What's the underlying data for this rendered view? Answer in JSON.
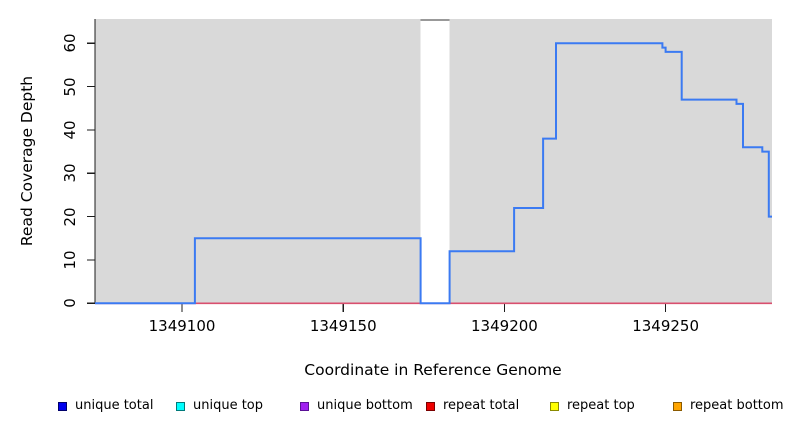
{
  "chart_data": {
    "type": "line",
    "subtype": "step-coverage",
    "title": "",
    "xlabel": "Coordinate in Reference Genome",
    "ylabel": "Read Coverage Depth",
    "xlim": [
      1349073,
      1349283
    ],
    "ylim": [
      0,
      65.6
    ],
    "x_ticks": [
      "1349100",
      "1349150",
      "1349200",
      "1349250"
    ],
    "x_tick_values": [
      1349100,
      1349150,
      1349200,
      1349250
    ],
    "y_ticks": [
      "0",
      "10",
      "20",
      "30",
      "40",
      "50",
      "60"
    ],
    "y_tick_values": [
      0,
      10,
      20,
      30,
      40,
      50,
      60
    ],
    "grid": false,
    "plot_bg": "#d9d9d9",
    "gap_region": {
      "from": 1349174,
      "to": 1349183,
      "fill": "#ffffff",
      "cap_color": "#999999"
    },
    "series": [
      {
        "name": "unique total",
        "type": "step",
        "color": "#3b7af2",
        "width": 2,
        "points": [
          [
            1349073,
            0
          ],
          [
            1349104,
            15
          ],
          [
            1349174,
            0
          ],
          [
            1349183,
            12
          ],
          [
            1349203,
            22
          ],
          [
            1349212,
            38
          ],
          [
            1349216,
            60
          ],
          [
            1349249,
            59
          ],
          [
            1349250,
            58
          ],
          [
            1349255,
            47
          ],
          [
            1349272,
            46
          ],
          [
            1349274,
            36
          ],
          [
            1349280,
            35
          ],
          [
            1349282,
            20
          ],
          [
            1349283,
            20
          ]
        ]
      },
      {
        "name": "repeat total",
        "type": "line",
        "color": "#d94f6e",
        "width": 1.7,
        "points": [
          [
            1349073,
            0
          ],
          [
            1349283,
            0
          ]
        ]
      }
    ],
    "legend_position": "bottom",
    "legend": [
      {
        "label": "unique total",
        "fill": "#0000ee",
        "border": "#00006b"
      },
      {
        "label": "unique top",
        "fill": "#00ffff",
        "border": "#007a7a"
      },
      {
        "label": "unique bottom",
        "fill": "#a020f0",
        "border": "#5a1196"
      },
      {
        "label": "repeat total",
        "fill": "#ee0000",
        "border": "#7a0000"
      },
      {
        "label": "repeat top",
        "fill": "#ffff00",
        "border": "#8a8a00"
      },
      {
        "label": "repeat bottom",
        "fill": "#ffa500",
        "border": "#8a5a00"
      }
    ],
    "axis_color": "#1c1c1c"
  }
}
